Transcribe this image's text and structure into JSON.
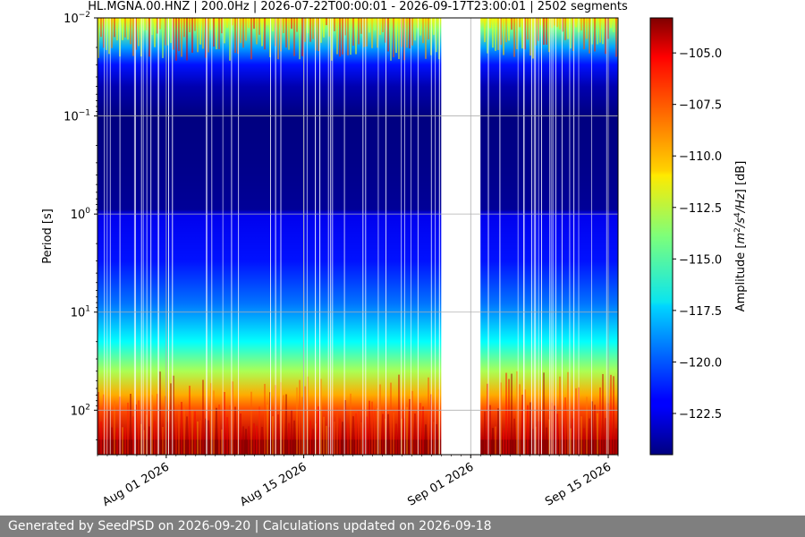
{
  "chart_data": {
    "type": "heatmap",
    "title": "HL.MGNA.00.HNZ | 200.0Hz | 2026-07-22T00:00:01 - 2026-09-17T23:00:01 | 2502 segments",
    "xlabel": "",
    "ylabel": "Period [s]",
    "x_scale": "date",
    "x_range": [
      "2026-07-25",
      "2026-09-16"
    ],
    "x_ticks": [
      {
        "date": "2026-08-01",
        "label": "Aug 01 2026"
      },
      {
        "date": "2026-08-15",
        "label": "Aug 15 2026"
      },
      {
        "date": "2026-09-01",
        "label": "Sep 01 2026"
      },
      {
        "date": "2026-09-15",
        "label": "Sep 15 2026"
      }
    ],
    "y_scale": "log",
    "y_inverted": true,
    "y_range": [
      0.01,
      284
    ],
    "y_ticks": [
      {
        "value": 0.01,
        "base": "10",
        "exp": "−2"
      },
      {
        "value": 0.1,
        "base": "10",
        "exp": "−1"
      },
      {
        "value": 1,
        "base": "10",
        "exp": "0"
      },
      {
        "value": 10,
        "base": "10",
        "exp": "1"
      },
      {
        "value": 100,
        "base": "10",
        "exp": "2"
      }
    ],
    "grid": true,
    "data_gap": [
      "2026-08-29",
      "2026-09-02"
    ],
    "colormap": "jet",
    "profile_db": [
      {
        "period": 0.01,
        "db": -111
      },
      {
        "period": 0.013,
        "db": -114
      },
      {
        "period": 0.02,
        "db": -118.5
      },
      {
        "period": 0.03,
        "db": -121.5
      },
      {
        "period": 0.05,
        "db": -123.5
      },
      {
        "period": 0.1,
        "db": -124.5
      },
      {
        "period": 0.3,
        "db": -124.3
      },
      {
        "period": 0.9,
        "db": -124
      },
      {
        "period": 1,
        "db": -122.2
      },
      {
        "period": 3,
        "db": -121.5
      },
      {
        "period": 8,
        "db": -119.5
      },
      {
        "period": 20,
        "db": -116.5
      },
      {
        "period": 40,
        "db": -113
      },
      {
        "period": 70,
        "db": -109.5
      },
      {
        "period": 100,
        "db": -107.5
      },
      {
        "period": 200,
        "db": -104.5
      },
      {
        "period": 284,
        "db": -103.5
      }
    ],
    "colorbar": {
      "label_prefix": "Amplitude [",
      "label_math": "m",
      "label_sup1": "2",
      "label_mid": "/s",
      "label_sup2": "4",
      "label_tail": "/Hz",
      "label_suffix": "] [dB]",
      "range": [
        -124.5,
        -103.3
      ],
      "ticks": [
        -105.0,
        -107.5,
        -110.0,
        -112.5,
        -115.0,
        -117.5,
        -120.0,
        -122.5
      ],
      "tick_labels": [
        "−105.0",
        "−107.5",
        "−110.0",
        "−112.5",
        "−115.0",
        "−117.5",
        "−120.0",
        "−122.5"
      ]
    }
  },
  "footer": {
    "text": "Generated by SeedPSD on 2026-09-20 | Calculations updated on 2026-09-18"
  }
}
